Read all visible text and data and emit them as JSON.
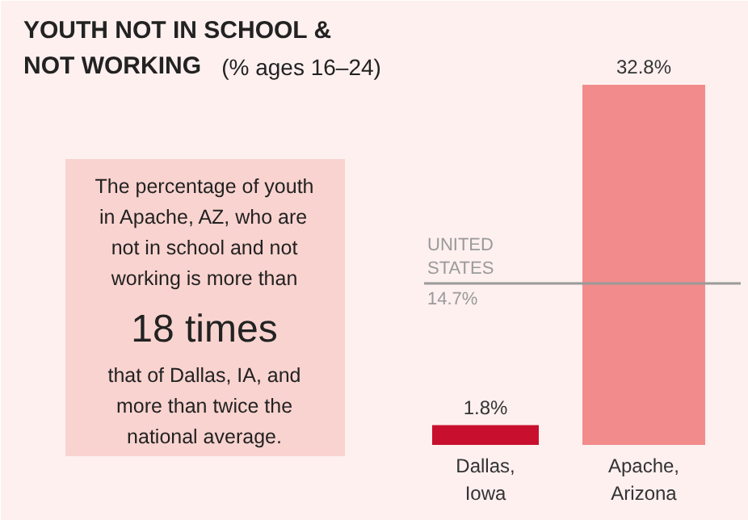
{
  "chart_data": {
    "type": "bar",
    "title": "YOUTH NOT IN SCHOOL & NOT WORKING",
    "subtitle": "(% ages 16–24)",
    "categories": [
      "Dallas, Iowa",
      "Apache, Arizona"
    ],
    "values": [
      1.8,
      32.8
    ],
    "colors": [
      "#c8102e",
      "#f28b8b"
    ],
    "value_labels": [
      "1.8%",
      "32.8%"
    ],
    "ref_lines": [
      {
        "axis": "y",
        "value": 14.7,
        "label": "UNITED STATES",
        "color": "#9a9a9a"
      }
    ],
    "annotations": [
      "The percentage of youth in Apache, AZ, who are not in school and not working is more than",
      "18 times",
      "that of Dallas, IA, and more than twice the national average.",
      {
        "text": "14.7%",
        "y": 14.7
      }
    ]
  }
}
